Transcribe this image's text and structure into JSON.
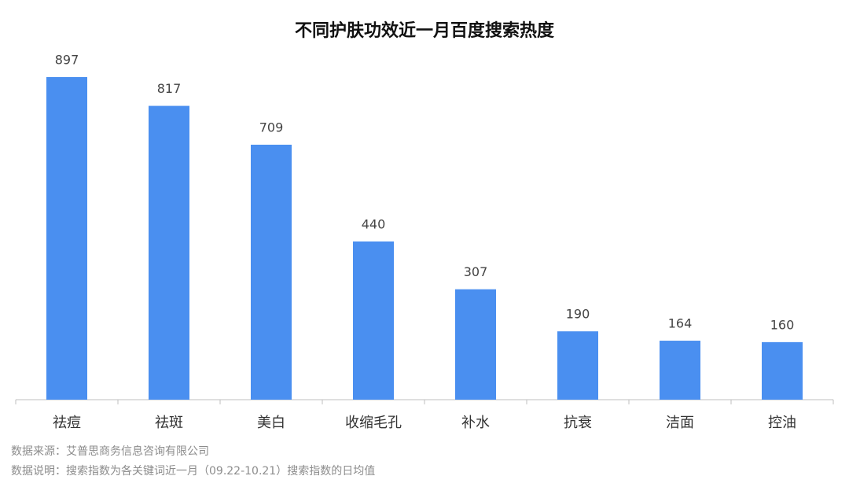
{
  "chart_data": {
    "type": "bar",
    "title": "不同护肤功效近一月百度搜索热度",
    "categories": [
      "祛痘",
      "祛斑",
      "美白",
      "收缩毛孔",
      "补水",
      "抗衰",
      "洁面",
      "控油"
    ],
    "values": [
      897,
      817,
      709,
      440,
      307,
      190,
      164,
      160
    ],
    "color": "#4a8ff0",
    "notes": [
      "数据来源：艾普思商务信息咨询有限公司",
      "数据说明：搜索指数为各关键词近一月（09.22-10.21）搜索指数的日均值"
    ]
  }
}
